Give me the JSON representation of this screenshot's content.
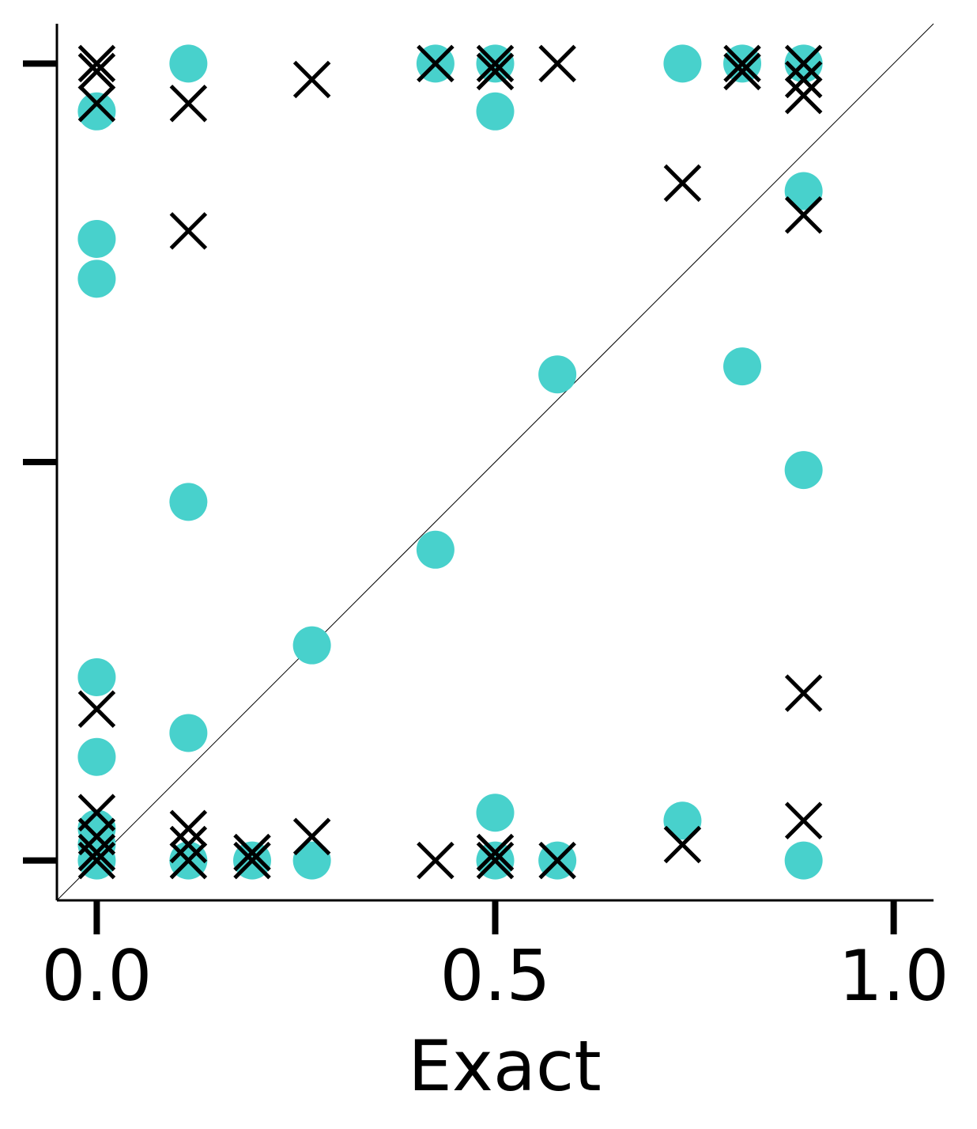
{
  "chart_data": {
    "type": "scatter",
    "xlabel": "Exact",
    "ylabel": "",
    "xlim": [
      -0.05,
      1.05
    ],
    "ylim": [
      -0.05,
      1.05
    ],
    "x_ticks": [
      0.0,
      0.5,
      1.0
    ],
    "x_tick_labels": [
      "0.0",
      "0.5",
      "1.0"
    ],
    "y_ticks": [
      0.0,
      0.5,
      1.0
    ],
    "grid": false,
    "reference_line": {
      "from": [
        -0.05,
        -0.05
      ],
      "to": [
        1.05,
        1.05
      ]
    },
    "series": [
      {
        "marker": "circle",
        "color": "#48D1CC",
        "points": [
          [
            0.0,
            0.94
          ],
          [
            0.0,
            0.78
          ],
          [
            0.0,
            0.73
          ],
          [
            0.0,
            0.23
          ],
          [
            0.0,
            0.13
          ],
          [
            0.0,
            0.04
          ],
          [
            0.0,
            0.02
          ],
          [
            0.0,
            0.0
          ],
          [
            0.115,
            1.0
          ],
          [
            0.115,
            0.45
          ],
          [
            0.115,
            0.16
          ],
          [
            0.115,
            0.0
          ],
          [
            0.195,
            0.0
          ],
          [
            0.27,
            0.27
          ],
          [
            0.27,
            0.0
          ],
          [
            0.425,
            1.0
          ],
          [
            0.425,
            0.39
          ],
          [
            0.5,
            1.0
          ],
          [
            0.5,
            0.94
          ],
          [
            0.5,
            0.06
          ],
          [
            0.5,
            0.0
          ],
          [
            0.578,
            0.61
          ],
          [
            0.578,
            0.0
          ],
          [
            0.735,
            1.0
          ],
          [
            0.735,
            0.05
          ],
          [
            0.81,
            1.0
          ],
          [
            0.81,
            0.62
          ],
          [
            0.887,
            1.0
          ],
          [
            0.887,
            0.84
          ],
          [
            0.887,
            0.49
          ],
          [
            0.887,
            0.0
          ]
        ]
      },
      {
        "marker": "x",
        "color": "#000000",
        "points": [
          [
            0.0,
            1.0
          ],
          [
            0.0,
            0.99
          ],
          [
            0.0,
            0.95
          ],
          [
            0.0,
            0.19
          ],
          [
            0.0,
            0.06
          ],
          [
            0.0,
            0.03
          ],
          [
            0.0,
            0.01
          ],
          [
            0.0,
            0.0
          ],
          [
            0.115,
            0.95
          ],
          [
            0.115,
            0.79
          ],
          [
            0.115,
            0.04
          ],
          [
            0.115,
            0.02
          ],
          [
            0.115,
            0.0
          ],
          [
            0.195,
            0.01
          ],
          [
            0.195,
            0.0
          ],
          [
            0.27,
            0.98
          ],
          [
            0.27,
            0.03
          ],
          [
            0.425,
            1.0
          ],
          [
            0.425,
            0.0
          ],
          [
            0.5,
            1.0
          ],
          [
            0.5,
            0.99
          ],
          [
            0.5,
            0.01
          ],
          [
            0.5,
            0.0
          ],
          [
            0.578,
            1.0
          ],
          [
            0.578,
            0.0
          ],
          [
            0.735,
            0.85
          ],
          [
            0.735,
            0.02
          ],
          [
            0.81,
            1.0
          ],
          [
            0.81,
            0.99
          ],
          [
            0.887,
            1.0
          ],
          [
            0.887,
            0.98
          ],
          [
            0.887,
            0.96
          ],
          [
            0.887,
            0.81
          ],
          [
            0.887,
            0.21
          ],
          [
            0.887,
            0.05
          ]
        ]
      }
    ]
  }
}
